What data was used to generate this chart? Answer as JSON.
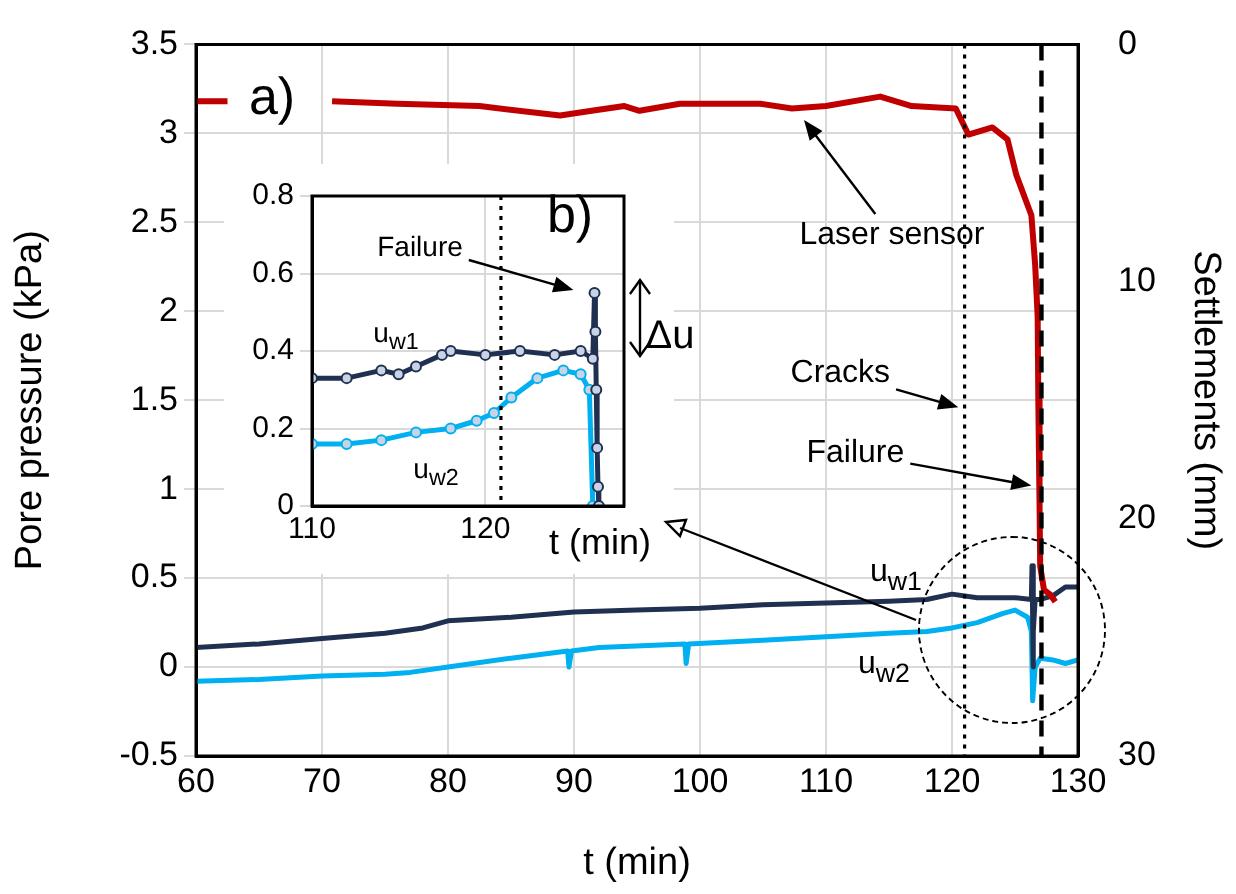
{
  "chart_data": [
    {
      "type": "line",
      "xlabel": "t (min)",
      "ylabel": "Pore pressure (kPa)",
      "y2label": "Settlements (mm)",
      "xlim": [
        60,
        130
      ],
      "xticks": [
        60,
        70,
        80,
        90,
        100,
        110,
        120,
        130
      ],
      "ylim": [
        -0.5,
        3.5
      ],
      "yticks": [
        -0.5,
        0,
        0.5,
        1,
        1.5,
        2,
        2.5,
        3,
        3.5
      ],
      "y2lim": [
        30,
        0
      ],
      "y2ticks": [
        0,
        10,
        20,
        30
      ],
      "grid": true,
      "series": [
        {
          "color": "#c00000",
          "axis": "y2",
          "x": [
            60,
            62.5,
            63,
            70.8,
            76,
            82.5,
            88.9,
            91.4,
            94,
            95.2,
            98.4,
            104.8,
            107.3,
            110,
            114.3,
            116.8,
            120.3,
            121.3,
            123.2,
            124.4,
            125.1,
            126.3,
            126.6,
            126.8,
            126.85,
            126.95,
            127,
            127.3,
            127.8,
            128.2
          ],
          "values": [
            2.4,
            2.4,
            null,
            2.4,
            2.5,
            2.6,
            3.0,
            2.8,
            2.6,
            2.8,
            2.5,
            2.5,
            2.7,
            2.6,
            2.2,
            2.6,
            2.7,
            3.8,
            3.5,
            4.0,
            5.5,
            7.2,
            9.3,
            11.5,
            15,
            19.5,
            22,
            23,
            23.2,
            23.5
          ]
        },
        {
          "color": "#1f3050",
          "x": [
            60,
            65,
            70,
            75,
            78,
            80,
            85,
            90,
            95,
            100,
            105,
            110,
            115,
            118,
            120,
            122,
            125,
            126.3,
            126.35,
            126.4,
            126.5,
            126.6,
            127,
            128,
            129,
            130
          ],
          "values": [
            0.11,
            0.13,
            0.16,
            0.19,
            0.22,
            0.26,
            0.28,
            0.31,
            0.32,
            0.33,
            0.35,
            0.36,
            0.37,
            0.38,
            0.41,
            0.39,
            0.39,
            0.38,
            0.57,
            0.0,
            0.2,
            0.38,
            0.38,
            0.4,
            0.45,
            0.45
          ]
        },
        {
          "color": "#00b0f0",
          "x": [
            60,
            65,
            70,
            75,
            77,
            80,
            85,
            89.5,
            89.6,
            89.8,
            92,
            98.8,
            98.9,
            99.1,
            105,
            110,
            115,
            118,
            120,
            122,
            124,
            125,
            126,
            126.3,
            126.4,
            126.6,
            127,
            128,
            129,
            130
          ],
          "values": [
            -0.08,
            -0.07,
            -0.05,
            -0.04,
            -0.03,
            0.0,
            0.05,
            0.09,
            0.0,
            0.09,
            0.11,
            0.13,
            0.02,
            0.13,
            0.15,
            0.17,
            0.19,
            0.2,
            0.22,
            0.25,
            0.3,
            0.32,
            0.28,
            0.2,
            -0.19,
            0.0,
            0.05,
            0.04,
            0.02,
            0.04
          ]
        }
      ],
      "ref_lines": [
        {
          "axis": "x",
          "value": 121,
          "line_style": "dotted",
          "color": "#000000"
        },
        {
          "axis": "x",
          "value": 127.1,
          "line_style": "dashed",
          "color": "#000000"
        }
      ],
      "annotations": [
        "a)",
        "Laser sensor",
        {
          "text": "Cracks",
          "x": 120.5,
          "y": 1.46
        },
        {
          "text": "Failure",
          "x": 126.3,
          "y": 1.02
        },
        "u$_{w1}$",
        "u$_{w2}$"
      ]
    },
    {
      "type": "line",
      "xlabel": "t (min)",
      "xlim": [
        110,
        128
      ],
      "xticks": [
        110,
        120
      ],
      "ylim": [
        0,
        0.8
      ],
      "yticks": [
        0,
        0.2,
        0.4,
        0.6,
        0.8
      ],
      "grid": true,
      "marker": "circle",
      "series": [
        {
          "color": "#1f3050",
          "x": [
            110,
            112,
            114,
            115,
            116,
            117.5,
            118,
            120,
            122,
            124,
            125.5,
            126.2,
            126.3,
            126.35,
            126.4,
            126.45,
            126.5,
            126.55
          ],
          "values": [
            0.33,
            0.33,
            0.35,
            0.34,
            0.36,
            0.39,
            0.4,
            0.39,
            0.4,
            0.39,
            0.4,
            0.38,
            0.55,
            0.45,
            0.3,
            0.15,
            0.05,
            0.0
          ]
        },
        {
          "color": "#00b0f0",
          "x": [
            110,
            112,
            114,
            116,
            118,
            119.5,
            120.5,
            121.5,
            123,
            124.5,
            125.5,
            126,
            126.2
          ],
          "values": [
            0.16,
            0.16,
            0.17,
            0.19,
            0.2,
            0.22,
            0.24,
            0.28,
            0.33,
            0.35,
            0.34,
            0.3,
            0.0
          ]
        }
      ],
      "ref_lines": [
        {
          "axis": "x",
          "value": 120.9,
          "line_style": "dotted",
          "color": "#000000"
        }
      ],
      "annotations": [
        "b)",
        "Δu",
        "Failure",
        "u$_{w1}$",
        "u$_{w2}$"
      ]
    }
  ]
}
